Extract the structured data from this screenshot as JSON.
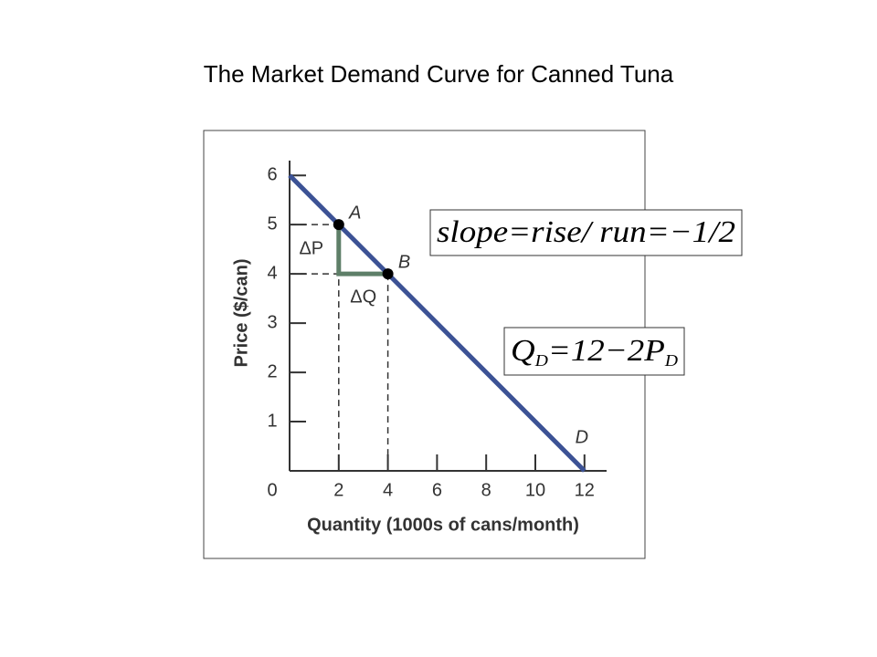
{
  "chart_data": {
    "type": "line",
    "title": "The Market Demand Curve for Canned Tuna",
    "x_label": "Quantity (1000s of cans/month)",
    "y_label": "Price ($/can)",
    "xlim": [
      0,
      12.9
    ],
    "ylim": [
      0,
      6.3
    ],
    "xticks": [
      0,
      2,
      4,
      6,
      8,
      10,
      12
    ],
    "yticks": [
      1,
      2,
      3,
      4,
      5,
      6
    ],
    "series": [
      {
        "name": "D",
        "color": "#3c5295",
        "x": [
          0,
          12
        ],
        "values": [
          6,
          0
        ]
      }
    ],
    "points": [
      {
        "label": "A",
        "x": 2,
        "y": 5
      },
      {
        "label": "B",
        "x": 4,
        "y": 4
      }
    ],
    "delta_p_label": "ΔP",
    "delta_q_label": "ΔQ",
    "delta_color": "#5e7f68",
    "equations": [
      {
        "parts": [
          {
            "text": "slope=rise/ run=−1/2"
          }
        ]
      },
      {
        "parts": [
          {
            "text": "Q"
          },
          {
            "text": "D",
            "sub": true
          },
          {
            "text": "=12−2P"
          },
          {
            "text": "D",
            "sub": true
          }
        ]
      }
    ]
  }
}
